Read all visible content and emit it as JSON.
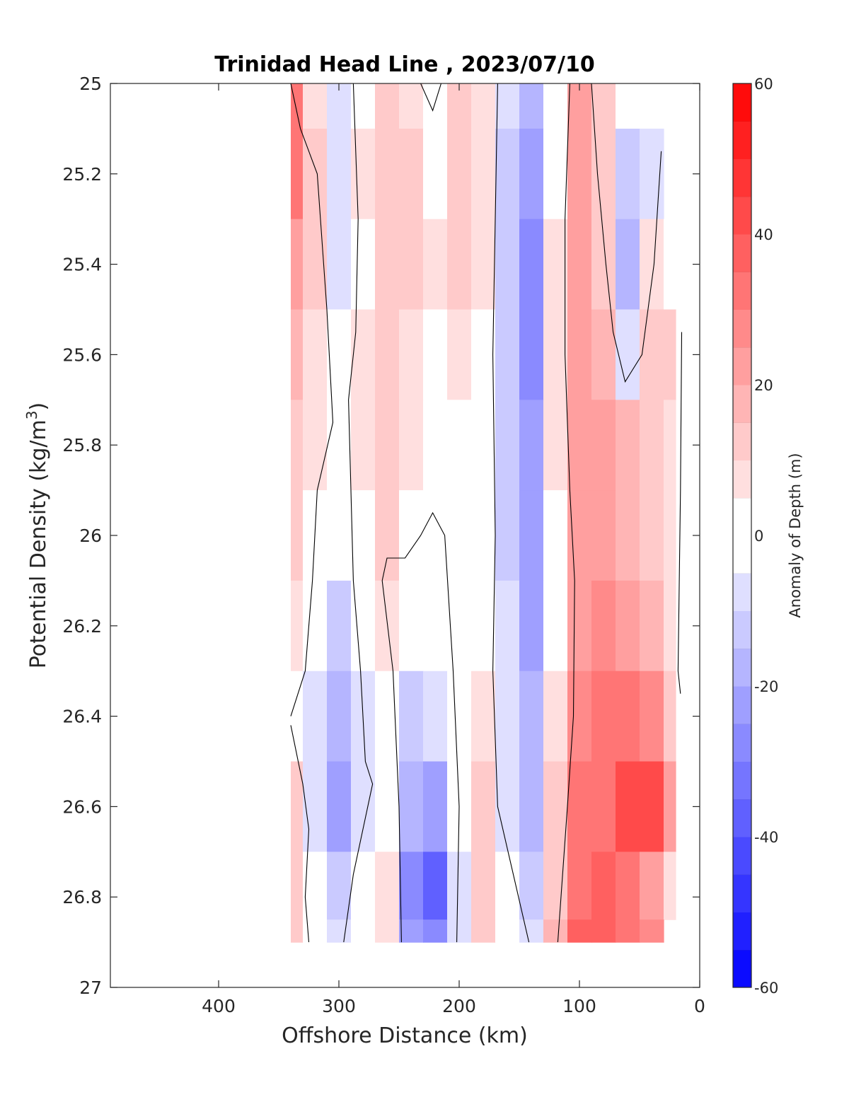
{
  "chart_data": {
    "type": "heatmap",
    "title": "Trinidad Head Line , 2023/07/10",
    "xlabel": "Offshore Distance (km)",
    "ylabel": "Potential Density (kg/m",
    "ylabel_sup": "3",
    "ylabel_end": ")",
    "xlim": [
      490,
      0
    ],
    "ylim": [
      25,
      27
    ],
    "x_reversed": true,
    "y_reversed": true,
    "xticks": [
      "400",
      "300",
      "200",
      "100",
      "0"
    ],
    "xtick_values": [
      400,
      300,
      200,
      100,
      0
    ],
    "yticks": [
      "25",
      "25.2",
      "25.4",
      "25.6",
      "25.8",
      "26",
      "26.2",
      "26.4",
      "26.6",
      "26.8",
      "27"
    ],
    "ytick_values": [
      25,
      25.2,
      25.4,
      25.6,
      25.8,
      26,
      26.2,
      26.4,
      26.6,
      26.8,
      27
    ],
    "colorbar": {
      "label": "Anomaly of Depth (m)",
      "range": [
        -60,
        60
      ],
      "ticks": [
        "60",
        "40",
        "20",
        "0",
        "-20",
        "-40",
        "-60"
      ],
      "tick_values": [
        60,
        40,
        20,
        0,
        -20,
        -40,
        -60
      ],
      "colormap": "blue-white-red",
      "levels": 24
    },
    "x": [
      340,
      320,
      300,
      280,
      260,
      240,
      220,
      200,
      180,
      160,
      140,
      120,
      100,
      80,
      60,
      40,
      20
    ],
    "y": [
      25.0,
      25.2,
      25.4,
      25.6,
      25.8,
      26.0,
      26.2,
      26.4,
      26.6,
      26.8,
      26.9
    ],
    "z": [
      [
        30,
        8,
        -6,
        3,
        10,
        6,
        0,
        10,
        6,
        -10,
        -20,
        3,
        20,
        10,
        -3,
        null,
        null
      ],
      [
        30,
        10,
        -6,
        5,
        14,
        10,
        3,
        14,
        6,
        -12,
        -24,
        3,
        20,
        14,
        -14,
        -6,
        null
      ],
      [
        24,
        10,
        -6,
        3,
        14,
        12,
        6,
        10,
        6,
        -12,
        -26,
        5,
        22,
        14,
        -16,
        5,
        3
      ],
      [
        18,
        8,
        1,
        6,
        12,
        9,
        4,
        8,
        4,
        -12,
        -26,
        5,
        24,
        18,
        -6,
        12,
        12
      ],
      [
        14,
        6,
        1,
        5,
        10,
        5,
        0,
        4,
        0,
        -12,
        -24,
        5,
        22,
        22,
        16,
        12,
        8
      ],
      [
        12,
        2,
        -4,
        4,
        10,
        4,
        0,
        3,
        0,
        -12,
        -24,
        4,
        20,
        22,
        18,
        14,
        8
      ],
      [
        8,
        -2,
        -12,
        -4,
        5,
        -2,
        -4,
        2,
        0,
        -10,
        -22,
        3,
        22,
        26,
        22,
        16,
        6
      ],
      [
        4,
        -6,
        -18,
        -8,
        2,
        -12,
        -10,
        2,
        6,
        -8,
        -20,
        6,
        26,
        30,
        30,
        26,
        12
      ],
      [
        10,
        -6,
        -22,
        -6,
        2,
        -18,
        -22,
        -2,
        10,
        -6,
        -16,
        10,
        30,
        34,
        40,
        42,
        20
      ],
      [
        10,
        -4,
        -12,
        -4,
        8,
        -26,
        -38,
        -10,
        14,
        -4,
        -12,
        14,
        34,
        36,
        30,
        24,
        8
      ],
      [
        10,
        -4,
        -10,
        -2,
        6,
        -22,
        -30,
        -8,
        12,
        -2,
        -8,
        16,
        36,
        36,
        32,
        26,
        null
      ]
    ],
    "zero_contours": [
      [
        [
          340,
          25.0
        ],
        [
          332,
          25.1
        ],
        [
          318,
          25.2
        ],
        [
          310,
          25.5
        ],
        [
          305,
          25.75
        ],
        [
          318,
          25.9
        ],
        [
          322,
          26.1
        ],
        [
          328,
          26.3
        ],
        [
          340,
          26.4
        ]
      ],
      [
        [
          340,
          26.42
        ],
        [
          330,
          26.55
        ],
        [
          325,
          26.65
        ],
        [
          328,
          26.8
        ],
        [
          325,
          26.9
        ]
      ],
      [
        [
          288,
          25.0
        ],
        [
          284,
          25.3
        ],
        [
          286,
          25.55
        ],
        [
          292,
          25.7
        ],
        [
          290,
          25.9
        ],
        [
          288,
          26.1
        ],
        [
          282,
          26.3
        ],
        [
          278,
          26.5
        ],
        [
          272,
          26.55
        ],
        [
          288,
          26.75
        ],
        [
          296,
          26.9
        ]
      ],
      [
        [
          232,
          25.0
        ],
        [
          222,
          25.06
        ],
        [
          215,
          25.0
        ]
      ],
      [
        [
          248,
          26.9
        ],
        [
          250,
          26.6
        ],
        [
          255,
          26.3
        ],
        [
          264,
          26.1
        ],
        [
          260,
          26.05
        ],
        [
          245,
          26.05
        ],
        [
          232,
          26.0
        ],
        [
          222,
          25.95
        ],
        [
          212,
          26.0
        ],
        [
          205,
          26.3
        ],
        [
          200,
          26.6
        ],
        [
          202,
          26.9
        ]
      ],
      [
        [
          168,
          25.0
        ],
        [
          170,
          25.3
        ],
        [
          172,
          25.6
        ],
        [
          170,
          26.0
        ],
        [
          172,
          26.3
        ],
        [
          168,
          26.6
        ],
        [
          155,
          26.75
        ],
        [
          142,
          26.9
        ]
      ],
      [
        [
          108,
          25.0
        ],
        [
          112,
          25.3
        ],
        [
          112,
          25.6
        ],
        [
          108,
          25.9
        ],
        [
          104,
          26.1
        ],
        [
          105,
          26.4
        ],
        [
          110,
          26.6
        ],
        [
          118,
          26.9
        ]
      ],
      [
        [
          90,
          25.0
        ],
        [
          85,
          25.2
        ],
        [
          78,
          25.4
        ],
        [
          72,
          25.55
        ],
        [
          62,
          25.66
        ],
        [
          48,
          25.6
        ],
        [
          38,
          25.4
        ],
        [
          32,
          25.15
        ]
      ],
      [
        [
          15,
          25.55
        ],
        [
          16,
          25.9
        ],
        [
          18,
          26.3
        ],
        [
          16,
          26.35
        ]
      ]
    ]
  }
}
